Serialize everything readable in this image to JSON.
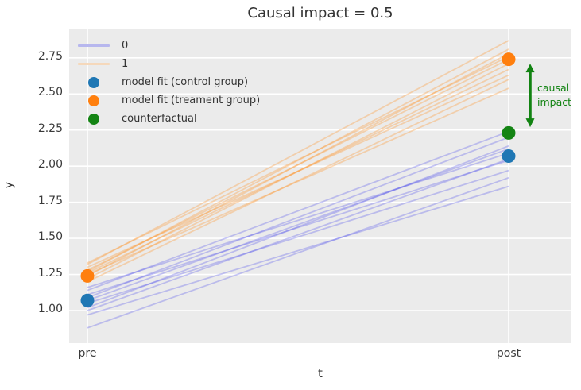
{
  "chart_data": {
    "type": "line",
    "title": "Causal impact = 0.5",
    "xlabel": "t",
    "ylabel": "y",
    "xticks": [
      "pre",
      "post"
    ],
    "yticks": [
      1.0,
      1.25,
      1.5,
      1.75,
      2.0,
      2.25,
      2.5,
      2.75
    ],
    "ylim": [
      0.774,
      2.947
    ],
    "grid": true,
    "legend_position": "upper left",
    "colors": {
      "axes_bg": "#ebebeb",
      "grid": "#ffffff",
      "control": "#1f77b4",
      "treatment": "#ff7f0e",
      "counterfactual": "#148414",
      "group0_line": "rgba(75,75,235,0.30)",
      "group1_line": "rgba(255,148,42,0.33)"
    },
    "series": [
      {
        "name": "0",
        "color": "rgba(75,75,235,0.30)",
        "lines": [
          [
            0.88,
            1.92
          ],
          [
            0.97,
            1.86
          ],
          [
            1.0,
            2.05
          ],
          [
            1.02,
            2.14
          ],
          [
            1.05,
            1.97
          ],
          [
            1.07,
            2.12
          ],
          [
            1.09,
            2.2
          ],
          [
            1.11,
            2.04
          ],
          [
            1.14,
            2.24
          ],
          [
            1.16,
            2.09
          ]
        ]
      },
      {
        "name": "1",
        "color": "rgba(255,148,42,0.33)",
        "lines": [
          [
            1.2,
            2.6
          ],
          [
            1.22,
            2.71
          ],
          [
            1.24,
            2.78
          ],
          [
            1.25,
            2.54
          ],
          [
            1.26,
            2.67
          ],
          [
            1.27,
            2.81
          ],
          [
            1.28,
            2.74
          ],
          [
            1.3,
            2.63
          ],
          [
            1.32,
            2.87
          ],
          [
            1.33,
            2.76
          ]
        ]
      }
    ],
    "markers": [
      {
        "name": "model fit (control group)",
        "color": "#1f77b4",
        "points": [
          {
            "t": "pre",
            "y": 1.07
          },
          {
            "t": "post",
            "y": 2.07
          }
        ]
      },
      {
        "name": "model fit (treament group)",
        "color": "#ff7f0e",
        "points": [
          {
            "t": "pre",
            "y": 1.24
          },
          {
            "t": "post",
            "y": 2.74
          }
        ]
      },
      {
        "name": "counterfactual",
        "color": "#148414",
        "points": [
          {
            "t": "post",
            "y": 2.23
          }
        ]
      }
    ],
    "annotation": {
      "label_lines": [
        "causal",
        "impact"
      ],
      "color": "#128312",
      "arrow_top_y": 2.71,
      "arrow_bottom_y": 2.27,
      "arrow_t": 1.051
    },
    "legend": [
      {
        "type": "line",
        "color": "#b7b7ee",
        "label": "0"
      },
      {
        "type": "line",
        "color": "#f5d8bb",
        "label": "1"
      },
      {
        "type": "dot",
        "color": "#1f77b4",
        "label": "model fit (control group)"
      },
      {
        "type": "dot",
        "color": "#ff7f0e",
        "label": "model fit (treament group)"
      },
      {
        "type": "dot",
        "color": "#148414",
        "label": "counterfactual"
      }
    ]
  }
}
